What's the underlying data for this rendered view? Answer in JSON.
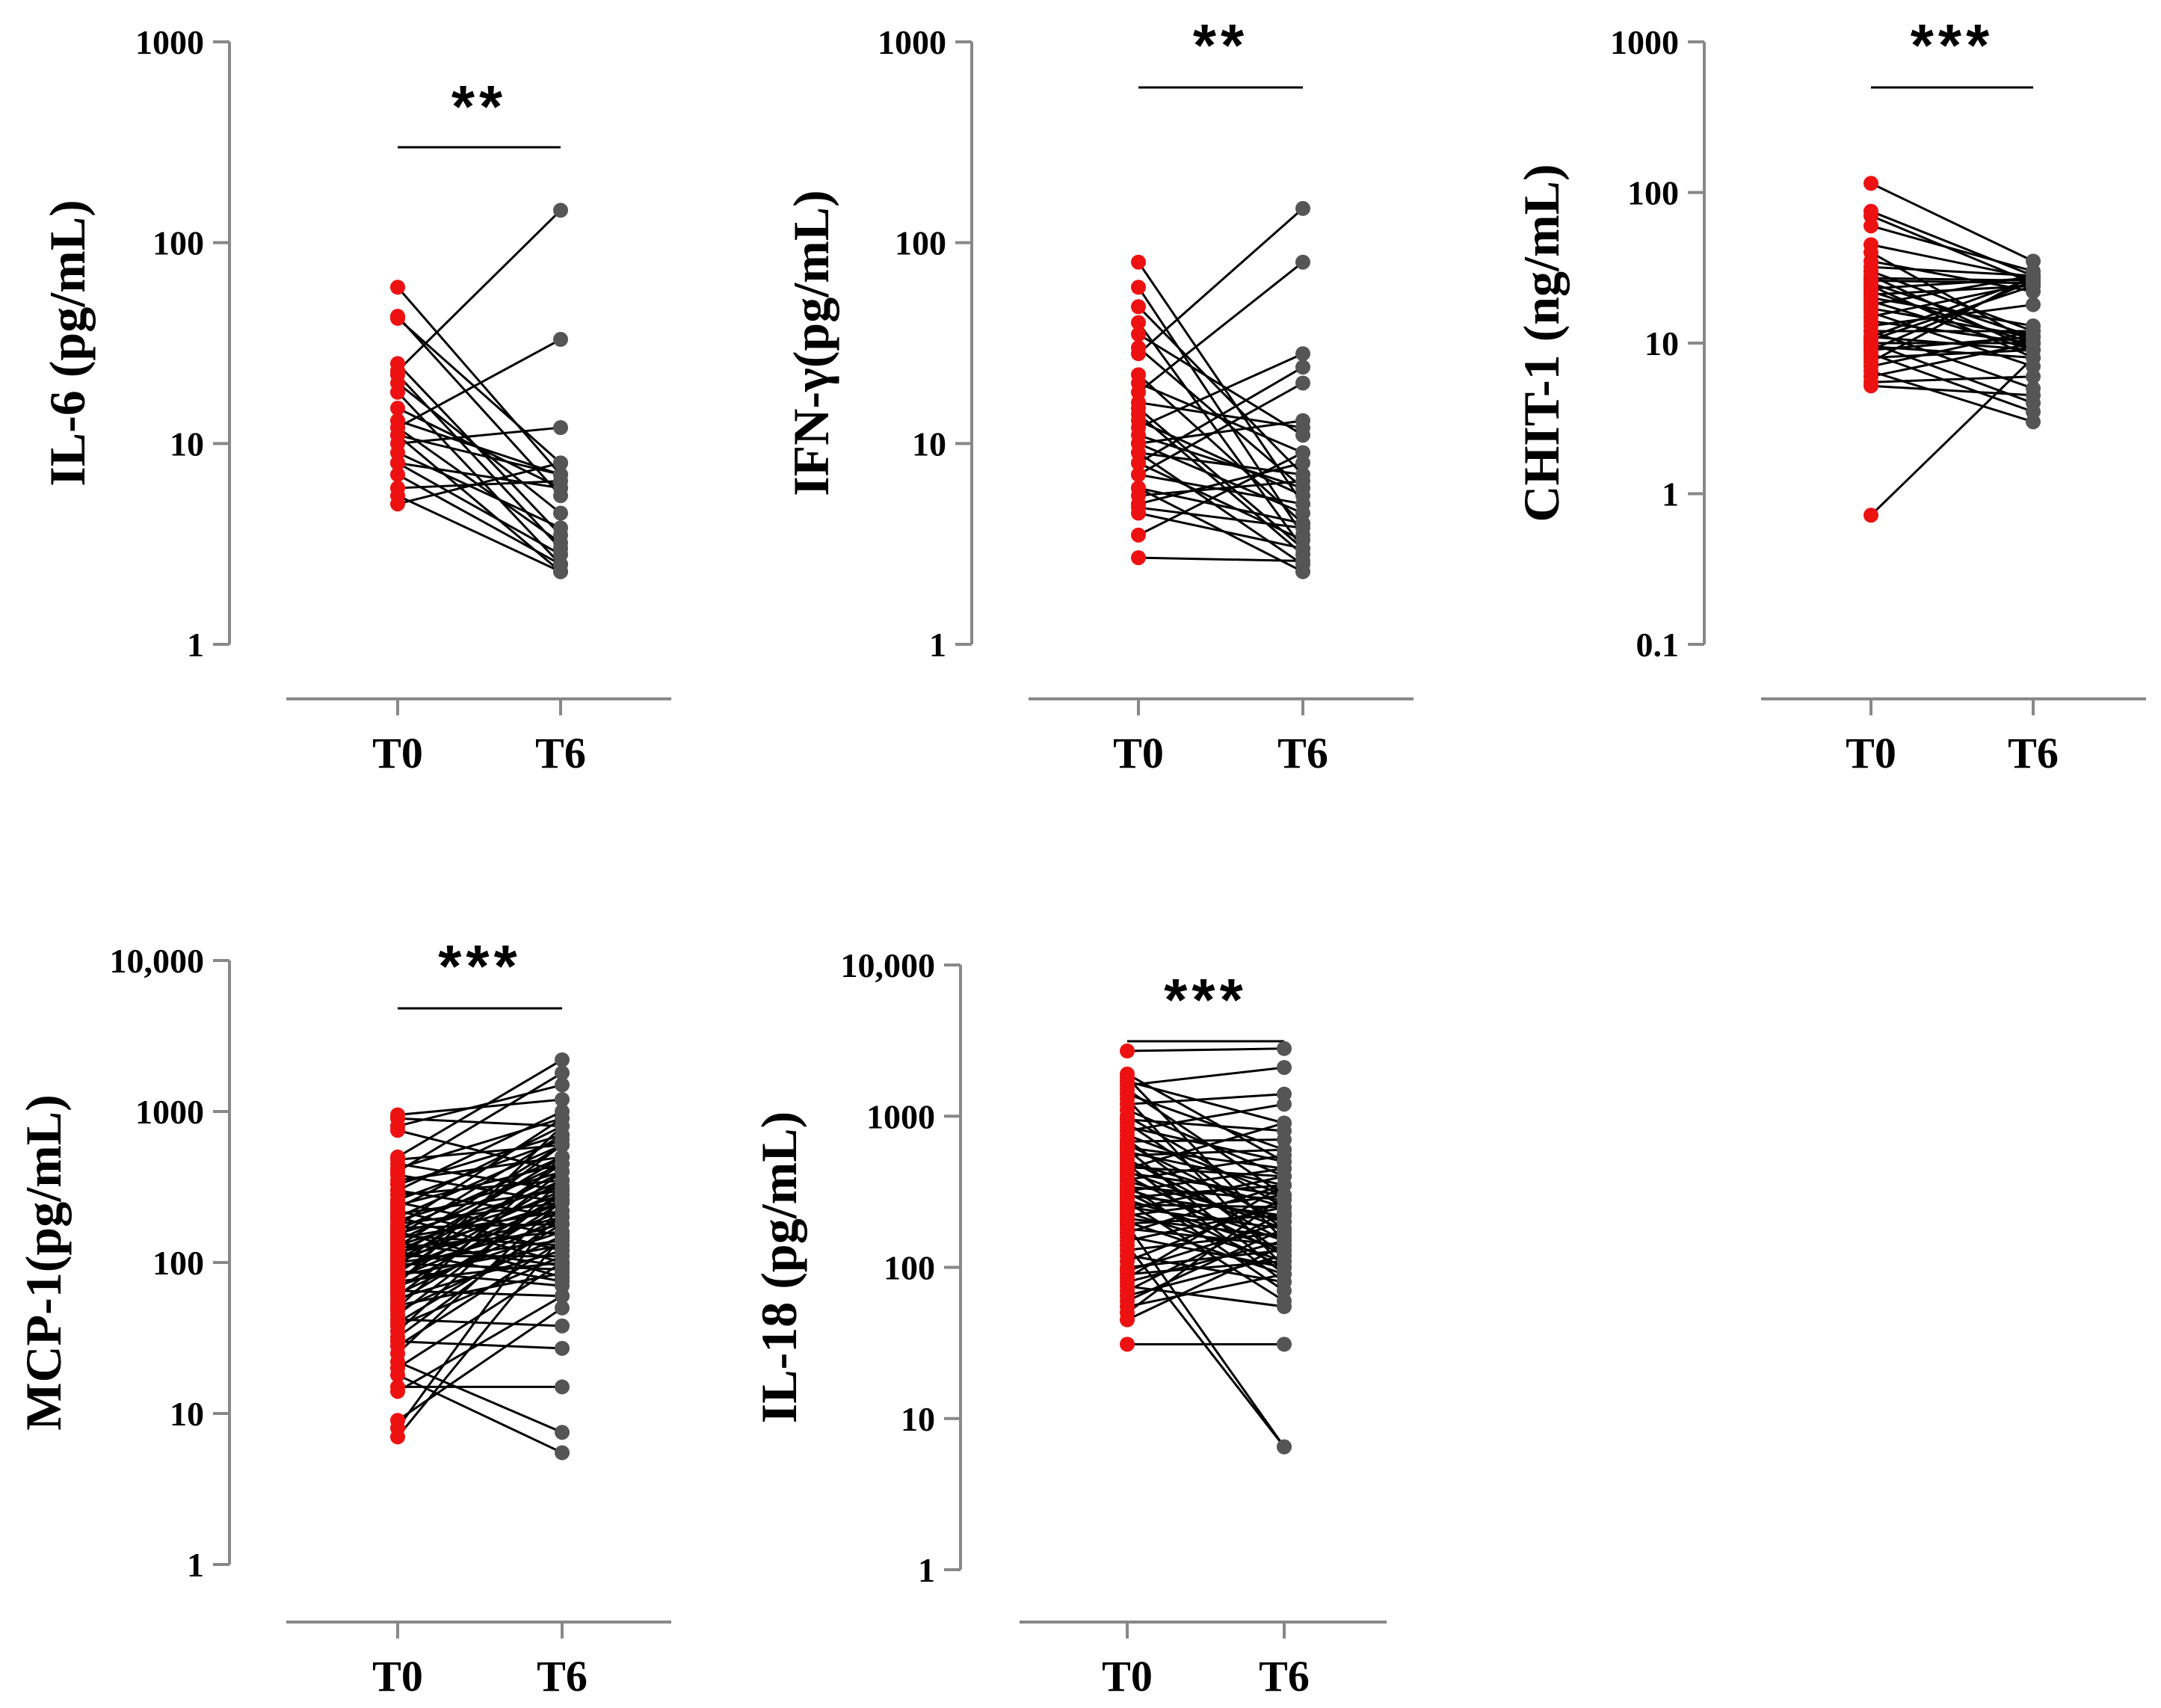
{
  "colors": {
    "t0_point": "#ee1111",
    "t6_point": "#555555",
    "line": "#000000",
    "axis": "#888888",
    "text": "#000000"
  },
  "chart_data": [
    {
      "id": "il6",
      "type": "scatter",
      "subtype": "paired-dots",
      "yscale": "log",
      "ylabel": "IL-6 (pg/mL)",
      "ylim": [
        1,
        1000
      ],
      "yticks": [
        1,
        10,
        100,
        1000
      ],
      "ytick_labels": [
        "1",
        "10",
        "100",
        "1000"
      ],
      "categories": [
        "T0",
        "T6"
      ],
      "significance": "**",
      "pairs": [
        [
          60,
          7
        ],
        [
          43,
          5.5
        ],
        [
          42,
          8
        ],
        [
          25,
          3.5
        ],
        [
          23,
          145
        ],
        [
          22,
          3
        ],
        [
          20,
          4.5
        ],
        [
          18,
          2.5
        ],
        [
          15,
          6
        ],
        [
          13,
          7
        ],
        [
          12,
          33
        ],
        [
          12,
          3.2
        ],
        [
          11,
          2.3
        ],
        [
          11,
          7
        ],
        [
          10,
          12
        ],
        [
          9,
          3.8
        ],
        [
          8,
          2.8
        ],
        [
          8,
          6
        ],
        [
          7,
          2.5
        ],
        [
          6,
          6.5
        ],
        [
          5.5,
          2.3
        ],
        [
          5,
          8
        ]
      ]
    },
    {
      "id": "ifng",
      "type": "scatter",
      "subtype": "paired-dots",
      "yscale": "log",
      "ylabel": "IFN-γ(pg/mL)",
      "ylim": [
        1,
        1000
      ],
      "yticks": [
        1,
        10,
        100,
        1000
      ],
      "ytick_labels": [
        "1",
        "10",
        "100",
        "1000"
      ],
      "categories": [
        "T0",
        "T6"
      ],
      "significance": "**",
      "pairs": [
        [
          80,
          5
        ],
        [
          60,
          3.5
        ],
        [
          48,
          7
        ],
        [
          40,
          3
        ],
        [
          35,
          11
        ],
        [
          30,
          6
        ],
        [
          28,
          148
        ],
        [
          22,
          4
        ],
        [
          20,
          9
        ],
        [
          18,
          80
        ],
        [
          16,
          12
        ],
        [
          15,
          3
        ],
        [
          14,
          2.8
        ],
        [
          13,
          5.5
        ],
        [
          12,
          28
        ],
        [
          11,
          6
        ],
        [
          10,
          4.5
        ],
        [
          10,
          13
        ],
        [
          9,
          2.5
        ],
        [
          9,
          7
        ],
        [
          8,
          24
        ],
        [
          8,
          3.3
        ],
        [
          7,
          5
        ],
        [
          7,
          20
        ],
        [
          6,
          4
        ],
        [
          6,
          2.3
        ],
        [
          5.5,
          6.5
        ],
        [
          5,
          8
        ],
        [
          4.8,
          3.8
        ],
        [
          4.5,
          3
        ],
        [
          3.5,
          9
        ],
        [
          2.7,
          2.6
        ]
      ]
    },
    {
      "id": "chit1",
      "type": "scatter",
      "subtype": "paired-dots",
      "yscale": "log",
      "ylabel": "CHIT-1 (ng/mL)",
      "ylim": [
        0.1,
        1000
      ],
      "yticks": [
        0.1,
        1,
        10,
        100,
        1000
      ],
      "ytick_labels": [
        "0.1",
        "1",
        "10",
        "100",
        "1000"
      ],
      "categories": [
        "T0",
        "T6"
      ],
      "significance": "***",
      "pairs": [
        [
          115,
          35
        ],
        [
          75,
          28
        ],
        [
          70,
          25
        ],
        [
          60,
          30
        ],
        [
          45,
          27
        ],
        [
          40,
          10
        ],
        [
          35,
          22
        ],
        [
          32,
          28
        ],
        [
          30,
          12
        ],
        [
          28,
          9
        ],
        [
          27,
          26
        ],
        [
          26,
          25
        ],
        [
          25,
          11
        ],
        [
          24,
          8
        ],
        [
          23,
          27
        ],
        [
          22,
          10
        ],
        [
          21,
          24
        ],
        [
          20,
          13
        ],
        [
          19,
          9
        ],
        [
          18,
          28
        ],
        [
          17,
          11
        ],
        [
          16,
          7
        ],
        [
          15,
          25
        ],
        [
          14,
          10
        ],
        [
          13,
          18
        ],
        [
          12,
          12
        ],
        [
          12,
          5
        ],
        [
          11,
          27
        ],
        [
          11,
          9
        ],
        [
          10.5,
          24
        ],
        [
          10,
          10
        ],
        [
          10,
          4
        ],
        [
          9.5,
          8
        ],
        [
          9,
          26
        ],
        [
          9,
          11
        ],
        [
          8.5,
          3.5
        ],
        [
          8,
          9
        ],
        [
          7.5,
          28
        ],
        [
          7,
          12
        ],
        [
          6.5,
          3
        ],
        [
          6,
          10
        ],
        [
          5.5,
          6
        ],
        [
          5.2,
          4.5
        ],
        [
          0.72,
          8
        ]
      ]
    },
    {
      "id": "mcp1",
      "type": "scatter",
      "subtype": "paired-dots",
      "yscale": "log",
      "ylabel": "MCP-1(pg/mL)",
      "ylim": [
        1,
        10000
      ],
      "yticks": [
        1,
        10,
        100,
        1000,
        10000
      ],
      "ytick_labels": [
        "1",
        "10",
        "100",
        "1000",
        "10,000"
      ],
      "categories": [
        "T0",
        "T6"
      ],
      "significance": "***",
      "pairs": [
        [
          950,
          1200
        ],
        [
          900,
          800
        ],
        [
          800,
          1500
        ],
        [
          750,
          400
        ],
        [
          500,
          2200
        ],
        [
          480,
          600
        ],
        [
          450,
          300
        ],
        [
          420,
          900
        ],
        [
          400,
          1800
        ],
        [
          380,
          250
        ],
        [
          350,
          500
        ],
        [
          330,
          700
        ],
        [
          300,
          1000
        ],
        [
          300,
          200
        ],
        [
          280,
          350
        ],
        [
          260,
          650
        ],
        [
          250,
          150
        ],
        [
          240,
          450
        ],
        [
          230,
          800
        ],
        [
          220,
          120
        ],
        [
          210,
          300
        ],
        [
          200,
          600
        ],
        [
          200,
          100
        ],
        [
          190,
          400
        ],
        [
          180,
          250
        ],
        [
          175,
          900
        ],
        [
          170,
          180
        ],
        [
          165,
          500
        ],
        [
          160,
          80
        ],
        [
          155,
          320
        ],
        [
          150,
          700
        ],
        [
          150,
          130
        ],
        [
          145,
          220
        ],
        [
          140,
          450
        ],
        [
          135,
          95
        ],
        [
          130,
          280
        ],
        [
          128,
          600
        ],
        [
          125,
          160
        ],
        [
          120,
          350
        ],
        [
          118,
          75
        ],
        [
          115,
          250
        ],
        [
          112,
          500
        ],
        [
          110,
          110
        ],
        [
          108,
          200
        ],
        [
          105,
          400
        ],
        [
          100,
          140
        ],
        [
          100,
          300
        ],
        [
          98,
          90
        ],
        [
          95,
          600
        ],
        [
          92,
          180
        ],
        [
          90,
          250
        ],
        [
          88,
          70
        ],
        [
          85,
          450
        ],
        [
          82,
          130
        ],
        [
          80,
          220
        ],
        [
          78,
          350
        ],
        [
          75,
          100
        ],
        [
          72,
          800
        ],
        [
          70,
          160
        ],
        [
          68,
          280
        ],
        [
          65,
          60
        ],
        [
          62,
          200
        ],
        [
          60,
          400
        ],
        [
          58,
          120
        ],
        [
          55,
          250
        ],
        [
          52,
          85
        ],
        [
          50,
          500
        ],
        [
          48,
          150
        ],
        [
          45,
          300
        ],
        [
          42,
          38
        ],
        [
          40,
          180
        ],
        [
          38,
          110
        ],
        [
          35,
          350
        ],
        [
          32,
          200
        ],
        [
          30,
          27
        ],
        [
          28,
          140
        ],
        [
          25,
          260
        ],
        [
          22,
          7.5
        ],
        [
          20,
          100
        ],
        [
          18,
          5.5
        ],
        [
          15,
          15
        ],
        [
          14,
          60
        ],
        [
          9,
          50
        ],
        [
          8,
          250
        ],
        [
          7,
          150
        ]
      ]
    },
    {
      "id": "il18",
      "type": "scatter",
      "subtype": "paired-dots",
      "yscale": "log",
      "ylabel": "IL-18 (pg/mL)",
      "ylim": [
        1,
        10000
      ],
      "yticks": [
        1,
        10,
        100,
        1000,
        10000
      ],
      "ytick_labels": [
        "1",
        "10",
        "100",
        "1000",
        "10,000"
      ],
      "categories": [
        "T0",
        "T6"
      ],
      "significance": "***",
      "pairs": [
        [
          2700,
          2800
        ],
        [
          1900,
          500
        ],
        [
          1800,
          150
        ],
        [
          1700,
          900
        ],
        [
          1600,
          2100
        ],
        [
          1500,
          300
        ],
        [
          1400,
          600
        ],
        [
          1300,
          100
        ],
        [
          1200,
          1400
        ],
        [
          1100,
          400
        ],
        [
          1000,
          250
        ],
        [
          950,
          800
        ],
        [
          900,
          180
        ],
        [
          850,
          500
        ],
        [
          800,
          1200
        ],
        [
          750,
          300
        ],
        [
          700,
          120
        ],
        [
          680,
          700
        ],
        [
          650,
          200
        ],
        [
          620,
          450
        ],
        [
          600,
          90
        ],
        [
          580,
          350
        ],
        [
          550,
          600
        ],
        [
          520,
          150
        ],
        [
          500,
          250
        ],
        [
          480,
          80
        ],
        [
          460,
          400
        ],
        [
          450,
          900
        ],
        [
          430,
          180
        ],
        [
          420,
          300
        ],
        [
          400,
          120
        ],
        [
          380,
          550
        ],
        [
          370,
          200
        ],
        [
          350,
          70
        ],
        [
          340,
          280
        ],
        [
          330,
          150
        ],
        [
          320,
          450
        ],
        [
          310,
          100
        ],
        [
          300,
          220
        ],
        [
          290,
          350
        ],
        [
          280,
          130
        ],
        [
          270,
          60
        ],
        [
          260,
          250
        ],
        [
          250,
          180
        ],
        [
          240,
          400
        ],
        [
          230,
          110
        ],
        [
          220,
          300
        ],
        [
          210,
          160
        ],
        [
          200,
          90
        ],
        [
          195,
          220
        ],
        [
          190,
          6.5
        ],
        [
          180,
          140
        ],
        [
          170,
          350
        ],
        [
          160,
          100
        ],
        [
          150,
          250
        ],
        [
          140,
          6.5
        ],
        [
          130,
          170
        ],
        [
          120,
          80
        ],
        [
          110,
          280
        ],
        [
          100,
          130
        ],
        [
          95,
          200
        ],
        [
          90,
          110
        ],
        [
          85,
          350
        ],
        [
          80,
          150
        ],
        [
          75,
          55
        ],
        [
          70,
          230
        ],
        [
          65,
          120
        ],
        [
          60,
          180
        ],
        [
          55,
          90
        ],
        [
          50,
          300
        ],
        [
          45,
          140
        ],
        [
          31,
          31
        ]
      ]
    }
  ]
}
